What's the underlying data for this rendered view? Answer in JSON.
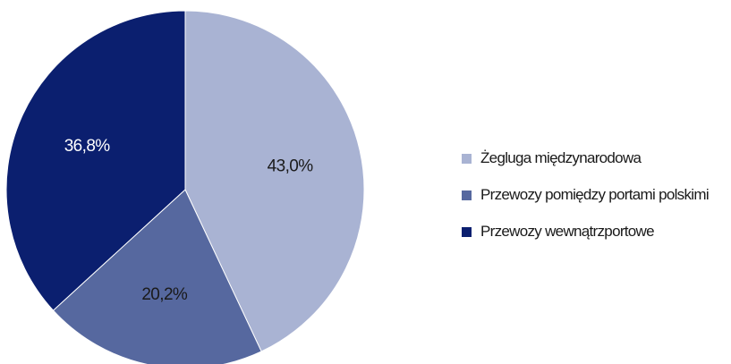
{
  "chart_data": {
    "type": "pie",
    "categories": [
      "Żegluga międzynarodowa",
      "Przewozy pomiędzy portami polskimi",
      "Przewozy wewnątrzportowe"
    ],
    "values": [
      43.0,
      20.2,
      36.8
    ],
    "value_labels": [
      "43,0%",
      "20,2%",
      "36,8%"
    ],
    "colors": [
      "#a9b3d3",
      "#56689f",
      "#0b1f6f"
    ],
    "label_colors": [
      "#1a1a1a",
      "#1a1a1a",
      "#ffffff"
    ],
    "start_angle": "12 o'clock",
    "direction": "clockwise",
    "legend_position": "right",
    "title": ""
  }
}
